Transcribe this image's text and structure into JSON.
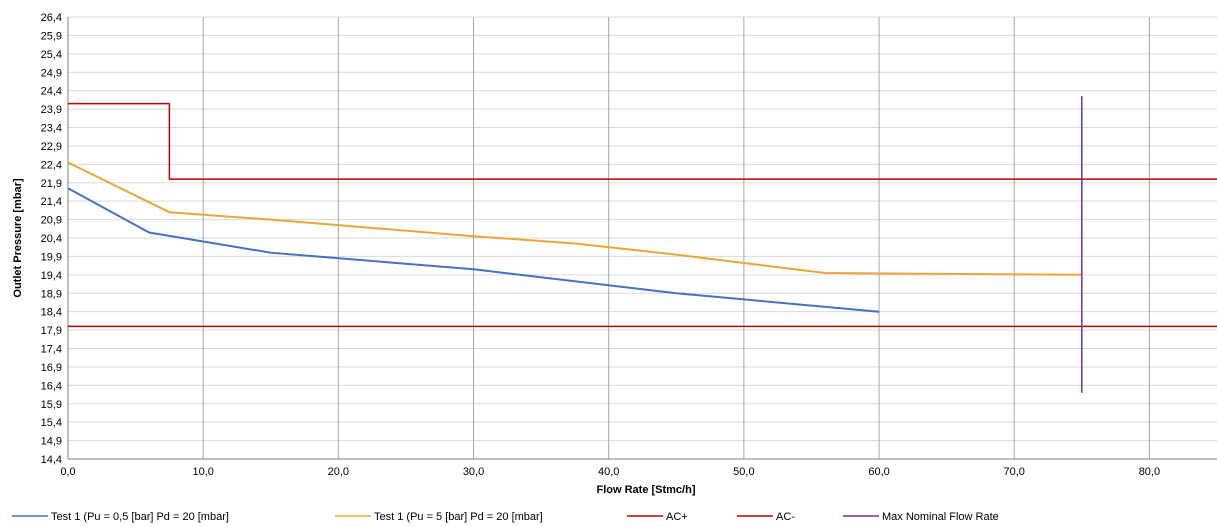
{
  "chart_data": {
    "type": "line",
    "title": "",
    "xlabel": "Flow Rate [Stmc/h]",
    "ylabel": "Outlet Pressure [mbar]",
    "xlim": [
      0,
      85
    ],
    "ylim": [
      14.4,
      26.4
    ],
    "x_ticks": [
      "0,0",
      "10,0",
      "20,0",
      "30,0",
      "40,0",
      "50,0",
      "60,0",
      "70,0",
      "80,0"
    ],
    "y_ticks": [
      "14,4",
      "14,9",
      "15,4",
      "15,9",
      "16,4",
      "16,9",
      "17,4",
      "17,9",
      "18,4",
      "18,9",
      "19,4",
      "19,9",
      "20,4",
      "20,9",
      "21,4",
      "21,9",
      "22,4",
      "22,9",
      "23,4",
      "23,9",
      "24,4",
      "24,9",
      "25,4",
      "25,9",
      "26,4"
    ],
    "grid": true,
    "legend_position": "bottom",
    "series": [
      {
        "name": "Test 1 (Pu = 0,5 [bar] Pd = 20  [mbar]",
        "color": "#4472c4",
        "x": [
          0,
          6,
          15,
          30,
          45,
          60
        ],
        "y": [
          21.75,
          20.55,
          20.0,
          19.55,
          18.9,
          18.4
        ]
      },
      {
        "name": "Test 1 (Pu = 5 [bar] Pd = 20  [mbar]",
        "color": "#e8a838",
        "x": [
          0,
          7.5,
          15,
          30,
          37.5,
          45,
          56,
          75
        ],
        "y": [
          22.45,
          21.1,
          20.9,
          20.45,
          20.25,
          19.95,
          19.45,
          19.4
        ]
      },
      {
        "name": "AC+",
        "color": "#c00000",
        "x": [
          0,
          7.5,
          7.5,
          85
        ],
        "y": [
          24.05,
          24.05,
          22.0,
          22.0
        ]
      },
      {
        "name": "AC-",
        "color": "#c00000",
        "x": [
          0,
          85
        ],
        "y": [
          18.0,
          18.0
        ]
      },
      {
        "name": "Max Nominal Flow Rate",
        "color": "#7030a0",
        "x": [
          75,
          75
        ],
        "y": [
          16.2,
          24.25
        ]
      }
    ]
  }
}
